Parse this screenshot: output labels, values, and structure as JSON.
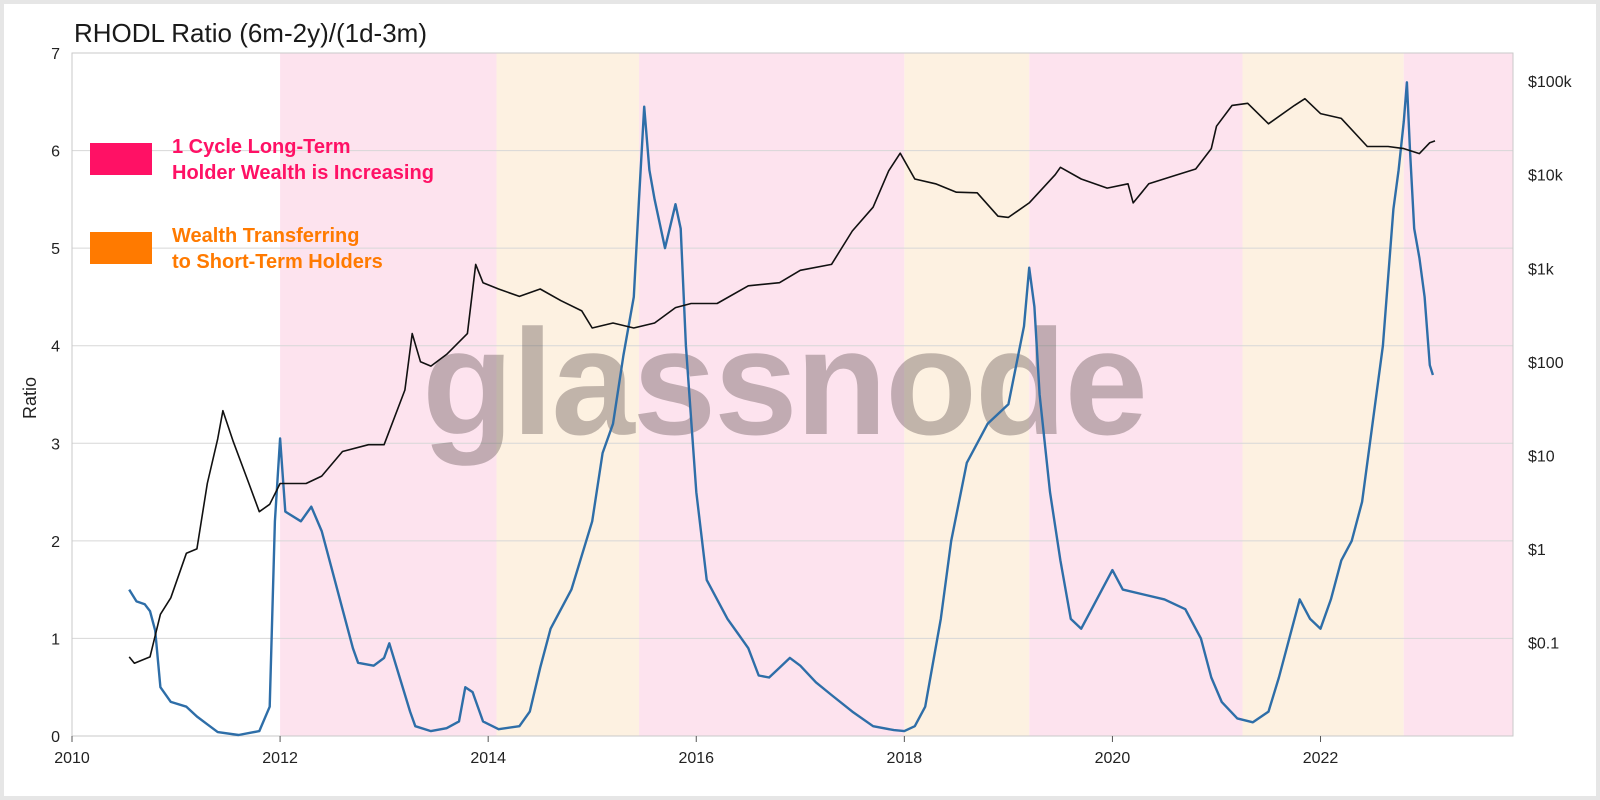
{
  "chart_data": {
    "type": "line",
    "title": "RHODL Ratio (6m-2y)/(1d-3m)",
    "ylabel": "Ratio",
    "xlabel": "",
    "ylim": [
      0,
      7
    ],
    "xlim": [
      2010,
      2023.85
    ],
    "y_ticks": [
      "0",
      "1",
      "2",
      "3",
      "4",
      "5",
      "6",
      "7"
    ],
    "x_ticks": [
      "2010",
      "2012",
      "2014",
      "2016",
      "2018",
      "2020",
      "2022"
    ],
    "y2_ticks": [
      "$0.1",
      "$1",
      "$10",
      "$100",
      "$1k",
      "$10k",
      "$100k"
    ],
    "y2_scale": "log",
    "y2_range": [
      0.01,
      200000
    ],
    "grid": true,
    "legend_position": "top-left",
    "watermark": "glassnode",
    "legend": [
      {
        "label_line1": "1 Cycle Long-Term",
        "label_line2": "Holder Wealth is Increasing",
        "color": "#ff1165"
      },
      {
        "label_line1": "Wealth Transferring",
        "label_line2": "to Short-Term Holders",
        "color": "#ff7a00"
      }
    ],
    "bands": [
      {
        "start": 2012.0,
        "end": 2014.08,
        "kind": "pink"
      },
      {
        "start": 2014.08,
        "end": 2015.45,
        "kind": "orange"
      },
      {
        "start": 2015.45,
        "end": 2018.0,
        "kind": "pink"
      },
      {
        "start": 2018.0,
        "end": 2019.2,
        "kind": "orange"
      },
      {
        "start": 2019.2,
        "end": 2021.25,
        "kind": "pink"
      },
      {
        "start": 2021.25,
        "end": 2022.8,
        "kind": "orange"
      },
      {
        "start": 2022.8,
        "end": 2023.85,
        "kind": "pink"
      }
    ],
    "band_colors": {
      "pink": "#fde3ee",
      "orange": "#fdf1e1"
    },
    "series": [
      {
        "axis": "left",
        "color": "#2e6ea8",
        "points": [
          [
            2010.55,
            1.5
          ],
          [
            2010.62,
            1.38
          ],
          [
            2010.7,
            1.35
          ],
          [
            2010.75,
            1.28
          ],
          [
            2010.8,
            1.08
          ],
          [
            2010.85,
            0.5
          ],
          [
            2010.95,
            0.35
          ],
          [
            2011.1,
            0.3
          ],
          [
            2011.2,
            0.2
          ],
          [
            2011.3,
            0.12
          ],
          [
            2011.4,
            0.04
          ],
          [
            2011.6,
            0.01
          ],
          [
            2011.8,
            0.05
          ],
          [
            2011.9,
            0.3
          ],
          [
            2011.95,
            2.2
          ],
          [
            2012.0,
            3.05
          ],
          [
            2012.05,
            2.3
          ],
          [
            2012.2,
            2.2
          ],
          [
            2012.3,
            2.35
          ],
          [
            2012.4,
            2.1
          ],
          [
            2012.5,
            1.7
          ],
          [
            2012.6,
            1.3
          ],
          [
            2012.7,
            0.9
          ],
          [
            2012.75,
            0.75
          ],
          [
            2012.9,
            0.72
          ],
          [
            2013.0,
            0.8
          ],
          [
            2013.05,
            0.95
          ],
          [
            2013.15,
            0.6
          ],
          [
            2013.25,
            0.25
          ],
          [
            2013.3,
            0.1
          ],
          [
            2013.45,
            0.05
          ],
          [
            2013.6,
            0.08
          ],
          [
            2013.72,
            0.15
          ],
          [
            2013.78,
            0.5
          ],
          [
            2013.85,
            0.45
          ],
          [
            2013.95,
            0.15
          ],
          [
            2014.1,
            0.07
          ],
          [
            2014.3,
            0.1
          ],
          [
            2014.4,
            0.25
          ],
          [
            2014.5,
            0.7
          ],
          [
            2014.6,
            1.1
          ],
          [
            2014.8,
            1.5
          ],
          [
            2015.0,
            2.2
          ],
          [
            2015.1,
            2.9
          ],
          [
            2015.2,
            3.2
          ],
          [
            2015.3,
            3.9
          ],
          [
            2015.4,
            4.5
          ],
          [
            2015.45,
            5.5
          ],
          [
            2015.5,
            6.45
          ],
          [
            2015.55,
            5.8
          ],
          [
            2015.6,
            5.5
          ],
          [
            2015.7,
            5.0
          ],
          [
            2015.8,
            5.45
          ],
          [
            2015.85,
            5.2
          ],
          [
            2015.9,
            4.0
          ],
          [
            2016.0,
            2.5
          ],
          [
            2016.1,
            1.6
          ],
          [
            2016.2,
            1.4
          ],
          [
            2016.3,
            1.2
          ],
          [
            2016.4,
            1.05
          ],
          [
            2016.5,
            0.9
          ],
          [
            2016.6,
            0.62
          ],
          [
            2016.7,
            0.6
          ],
          [
            2016.8,
            0.7
          ],
          [
            2016.9,
            0.8
          ],
          [
            2017.0,
            0.72
          ],
          [
            2017.15,
            0.55
          ],
          [
            2017.3,
            0.42
          ],
          [
            2017.5,
            0.25
          ],
          [
            2017.7,
            0.1
          ],
          [
            2017.9,
            0.06
          ],
          [
            2018.0,
            0.05
          ],
          [
            2018.1,
            0.1
          ],
          [
            2018.2,
            0.3
          ],
          [
            2018.35,
            1.2
          ],
          [
            2018.45,
            2.0
          ],
          [
            2018.6,
            2.8
          ],
          [
            2018.8,
            3.2
          ],
          [
            2018.9,
            3.3
          ],
          [
            2019.0,
            3.4
          ],
          [
            2019.15,
            4.2
          ],
          [
            2019.2,
            4.8
          ],
          [
            2019.25,
            4.4
          ],
          [
            2019.3,
            3.5
          ],
          [
            2019.4,
            2.5
          ],
          [
            2019.5,
            1.8
          ],
          [
            2019.6,
            1.2
          ],
          [
            2019.7,
            1.1
          ],
          [
            2019.8,
            1.3
          ],
          [
            2019.9,
            1.5
          ],
          [
            2020.0,
            1.7
          ],
          [
            2020.1,
            1.5
          ],
          [
            2020.3,
            1.45
          ],
          [
            2020.5,
            1.4
          ],
          [
            2020.7,
            1.3
          ],
          [
            2020.85,
            1.0
          ],
          [
            2020.95,
            0.6
          ],
          [
            2021.05,
            0.35
          ],
          [
            2021.2,
            0.18
          ],
          [
            2021.35,
            0.14
          ],
          [
            2021.5,
            0.25
          ],
          [
            2021.6,
            0.6
          ],
          [
            2021.7,
            1.0
          ],
          [
            2021.8,
            1.4
          ],
          [
            2021.9,
            1.2
          ],
          [
            2022.0,
            1.1
          ],
          [
            2022.1,
            1.4
          ],
          [
            2022.2,
            1.8
          ],
          [
            2022.3,
            2.0
          ],
          [
            2022.4,
            2.4
          ],
          [
            2022.5,
            3.2
          ],
          [
            2022.6,
            4.0
          ],
          [
            2022.7,
            5.4
          ],
          [
            2022.75,
            5.8
          ],
          [
            2022.8,
            6.3
          ],
          [
            2022.83,
            6.7
          ],
          [
            2022.86,
            6.0
          ],
          [
            2022.9,
            5.2
          ],
          [
            2022.95,
            4.9
          ],
          [
            2023.0,
            4.5
          ],
          [
            2023.05,
            3.8
          ],
          [
            2023.08,
            3.7
          ]
        ]
      },
      {
        "axis": "right",
        "color": "#111111",
        "points": [
          [
            2010.55,
            0.07
          ],
          [
            2010.6,
            0.06
          ],
          [
            2010.75,
            0.07
          ],
          [
            2010.85,
            0.2
          ],
          [
            2010.95,
            0.3
          ],
          [
            2011.1,
            0.9
          ],
          [
            2011.2,
            1.0
          ],
          [
            2011.3,
            5.0
          ],
          [
            2011.4,
            15
          ],
          [
            2011.45,
            30
          ],
          [
            2011.55,
            14
          ],
          [
            2011.7,
            5
          ],
          [
            2011.8,
            2.5
          ],
          [
            2011.9,
            3
          ],
          [
            2012.0,
            5
          ],
          [
            2012.15,
            5
          ],
          [
            2012.25,
            5
          ],
          [
            2012.4,
            6
          ],
          [
            2012.6,
            11
          ],
          [
            2012.85,
            13
          ],
          [
            2013.0,
            13
          ],
          [
            2013.2,
            50
          ],
          [
            2013.27,
            200
          ],
          [
            2013.35,
            100
          ],
          [
            2013.45,
            90
          ],
          [
            2013.6,
            120
          ],
          [
            2013.8,
            200
          ],
          [
            2013.88,
            1100
          ],
          [
            2013.95,
            700
          ],
          [
            2014.1,
            600
          ],
          [
            2014.3,
            500
          ],
          [
            2014.5,
            600
          ],
          [
            2014.7,
            450
          ],
          [
            2014.9,
            350
          ],
          [
            2015.0,
            230
          ],
          [
            2015.2,
            260
          ],
          [
            2015.4,
            230
          ],
          [
            2015.6,
            260
          ],
          [
            2015.8,
            380
          ],
          [
            2015.95,
            420
          ],
          [
            2016.2,
            420
          ],
          [
            2016.5,
            650
          ],
          [
            2016.8,
            700
          ],
          [
            2017.0,
            950
          ],
          [
            2017.3,
            1100
          ],
          [
            2017.5,
            2500
          ],
          [
            2017.7,
            4500
          ],
          [
            2017.85,
            11000
          ],
          [
            2017.96,
            17000
          ],
          [
            2018.1,
            9000
          ],
          [
            2018.3,
            8000
          ],
          [
            2018.5,
            6500
          ],
          [
            2018.7,
            6400
          ],
          [
            2018.9,
            3600
          ],
          [
            2019.0,
            3500
          ],
          [
            2019.2,
            5000
          ],
          [
            2019.45,
            10000
          ],
          [
            2019.5,
            12000
          ],
          [
            2019.7,
            9000
          ],
          [
            2019.95,
            7200
          ],
          [
            2020.15,
            8000
          ],
          [
            2020.2,
            5000
          ],
          [
            2020.35,
            8000
          ],
          [
            2020.6,
            9800
          ],
          [
            2020.8,
            11500
          ],
          [
            2020.95,
            19000
          ],
          [
            2021.0,
            33000
          ],
          [
            2021.15,
            55000
          ],
          [
            2021.3,
            58000
          ],
          [
            2021.5,
            35000
          ],
          [
            2021.75,
            55000
          ],
          [
            2021.85,
            65000
          ],
          [
            2022.0,
            45000
          ],
          [
            2022.2,
            40000
          ],
          [
            2022.45,
            20000
          ],
          [
            2022.65,
            20000
          ],
          [
            2022.8,
            19000
          ],
          [
            2022.95,
            16800
          ],
          [
            2023.05,
            22000
          ],
          [
            2023.1,
            23000
          ]
        ]
      }
    ]
  }
}
